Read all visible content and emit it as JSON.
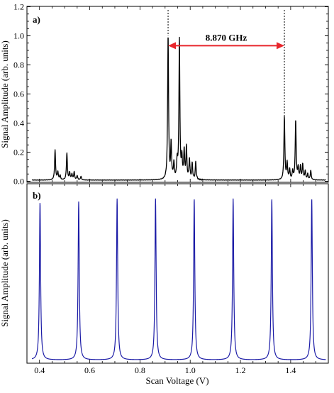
{
  "chart_data": [
    {
      "type": "line",
      "panel_label": "a)",
      "ylabel": "Signal Amplitude (arb. units)",
      "xlabel": "",
      "xlim": [
        0.35,
        1.55
      ],
      "ylim": [
        0.0,
        1.2
      ],
      "yticks": [
        "0.0",
        "0.2",
        "0.4",
        "0.6",
        "0.8",
        "1.0",
        "1.2"
      ],
      "grid": false,
      "series": [
        {
          "color": "#000000",
          "baseline": 0.008,
          "peaks": [
            {
              "x": 0.462,
              "y": 0.205
            },
            {
              "x": 0.473,
              "y": 0.055
            },
            {
              "x": 0.482,
              "y": 0.03
            },
            {
              "x": 0.509,
              "y": 0.185
            },
            {
              "x": 0.52,
              "y": 0.05
            },
            {
              "x": 0.529,
              "y": 0.04
            },
            {
              "x": 0.538,
              "y": 0.055
            },
            {
              "x": 0.55,
              "y": 0.03
            },
            {
              "x": 0.565,
              "y": 0.025
            },
            {
              "x": 0.912,
              "y": 1.0
            },
            {
              "x": 0.924,
              "y": 0.24
            },
            {
              "x": 0.935,
              "y": 0.11
            },
            {
              "x": 0.948,
              "y": 0.12
            },
            {
              "x": 0.957,
              "y": 0.965
            },
            {
              "x": 0.967,
              "y": 0.14
            },
            {
              "x": 0.976,
              "y": 0.2
            },
            {
              "x": 0.985,
              "y": 0.22
            },
            {
              "x": 0.997,
              "y": 0.14
            },
            {
              "x": 1.008,
              "y": 0.11
            },
            {
              "x": 1.022,
              "y": 0.12
            },
            {
              "x": 1.375,
              "y": 0.435
            },
            {
              "x": 1.386,
              "y": 0.115
            },
            {
              "x": 1.396,
              "y": 0.07
            },
            {
              "x": 1.408,
              "y": 0.06
            },
            {
              "x": 1.42,
              "y": 0.41
            },
            {
              "x": 1.43,
              "y": 0.08
            },
            {
              "x": 1.439,
              "y": 0.09
            },
            {
              "x": 1.448,
              "y": 0.105
            },
            {
              "x": 1.458,
              "y": 0.06
            },
            {
              "x": 1.468,
              "y": 0.04
            },
            {
              "x": 1.48,
              "y": 0.065
            }
          ]
        }
      ],
      "annotation": {
        "label": "8.870 GHz",
        "from_x": 0.912,
        "to_x": 1.375,
        "y": 1.02,
        "color": "#e8262c"
      }
    },
    {
      "type": "line",
      "panel_label": "b)",
      "ylabel": "Signal Amplitude (arb. units)",
      "xlabel": "Scan Voltage (V)",
      "xlim": [
        0.35,
        1.55
      ],
      "ylim": [
        0.0,
        1.0
      ],
      "xticks": [
        "0.4",
        "0.6",
        "0.8",
        "1.0",
        "1.2",
        "1.4"
      ],
      "grid": false,
      "series": [
        {
          "color": "#1a1aa6",
          "peaks_x": [
            0.402,
            0.556,
            0.709,
            0.862,
            1.016,
            1.171,
            1.325,
            1.484
          ],
          "peak_heights": [
            0.895,
            0.898,
            0.915,
            0.915,
            0.915,
            0.915,
            0.915,
            0.915
          ]
        }
      ]
    }
  ]
}
